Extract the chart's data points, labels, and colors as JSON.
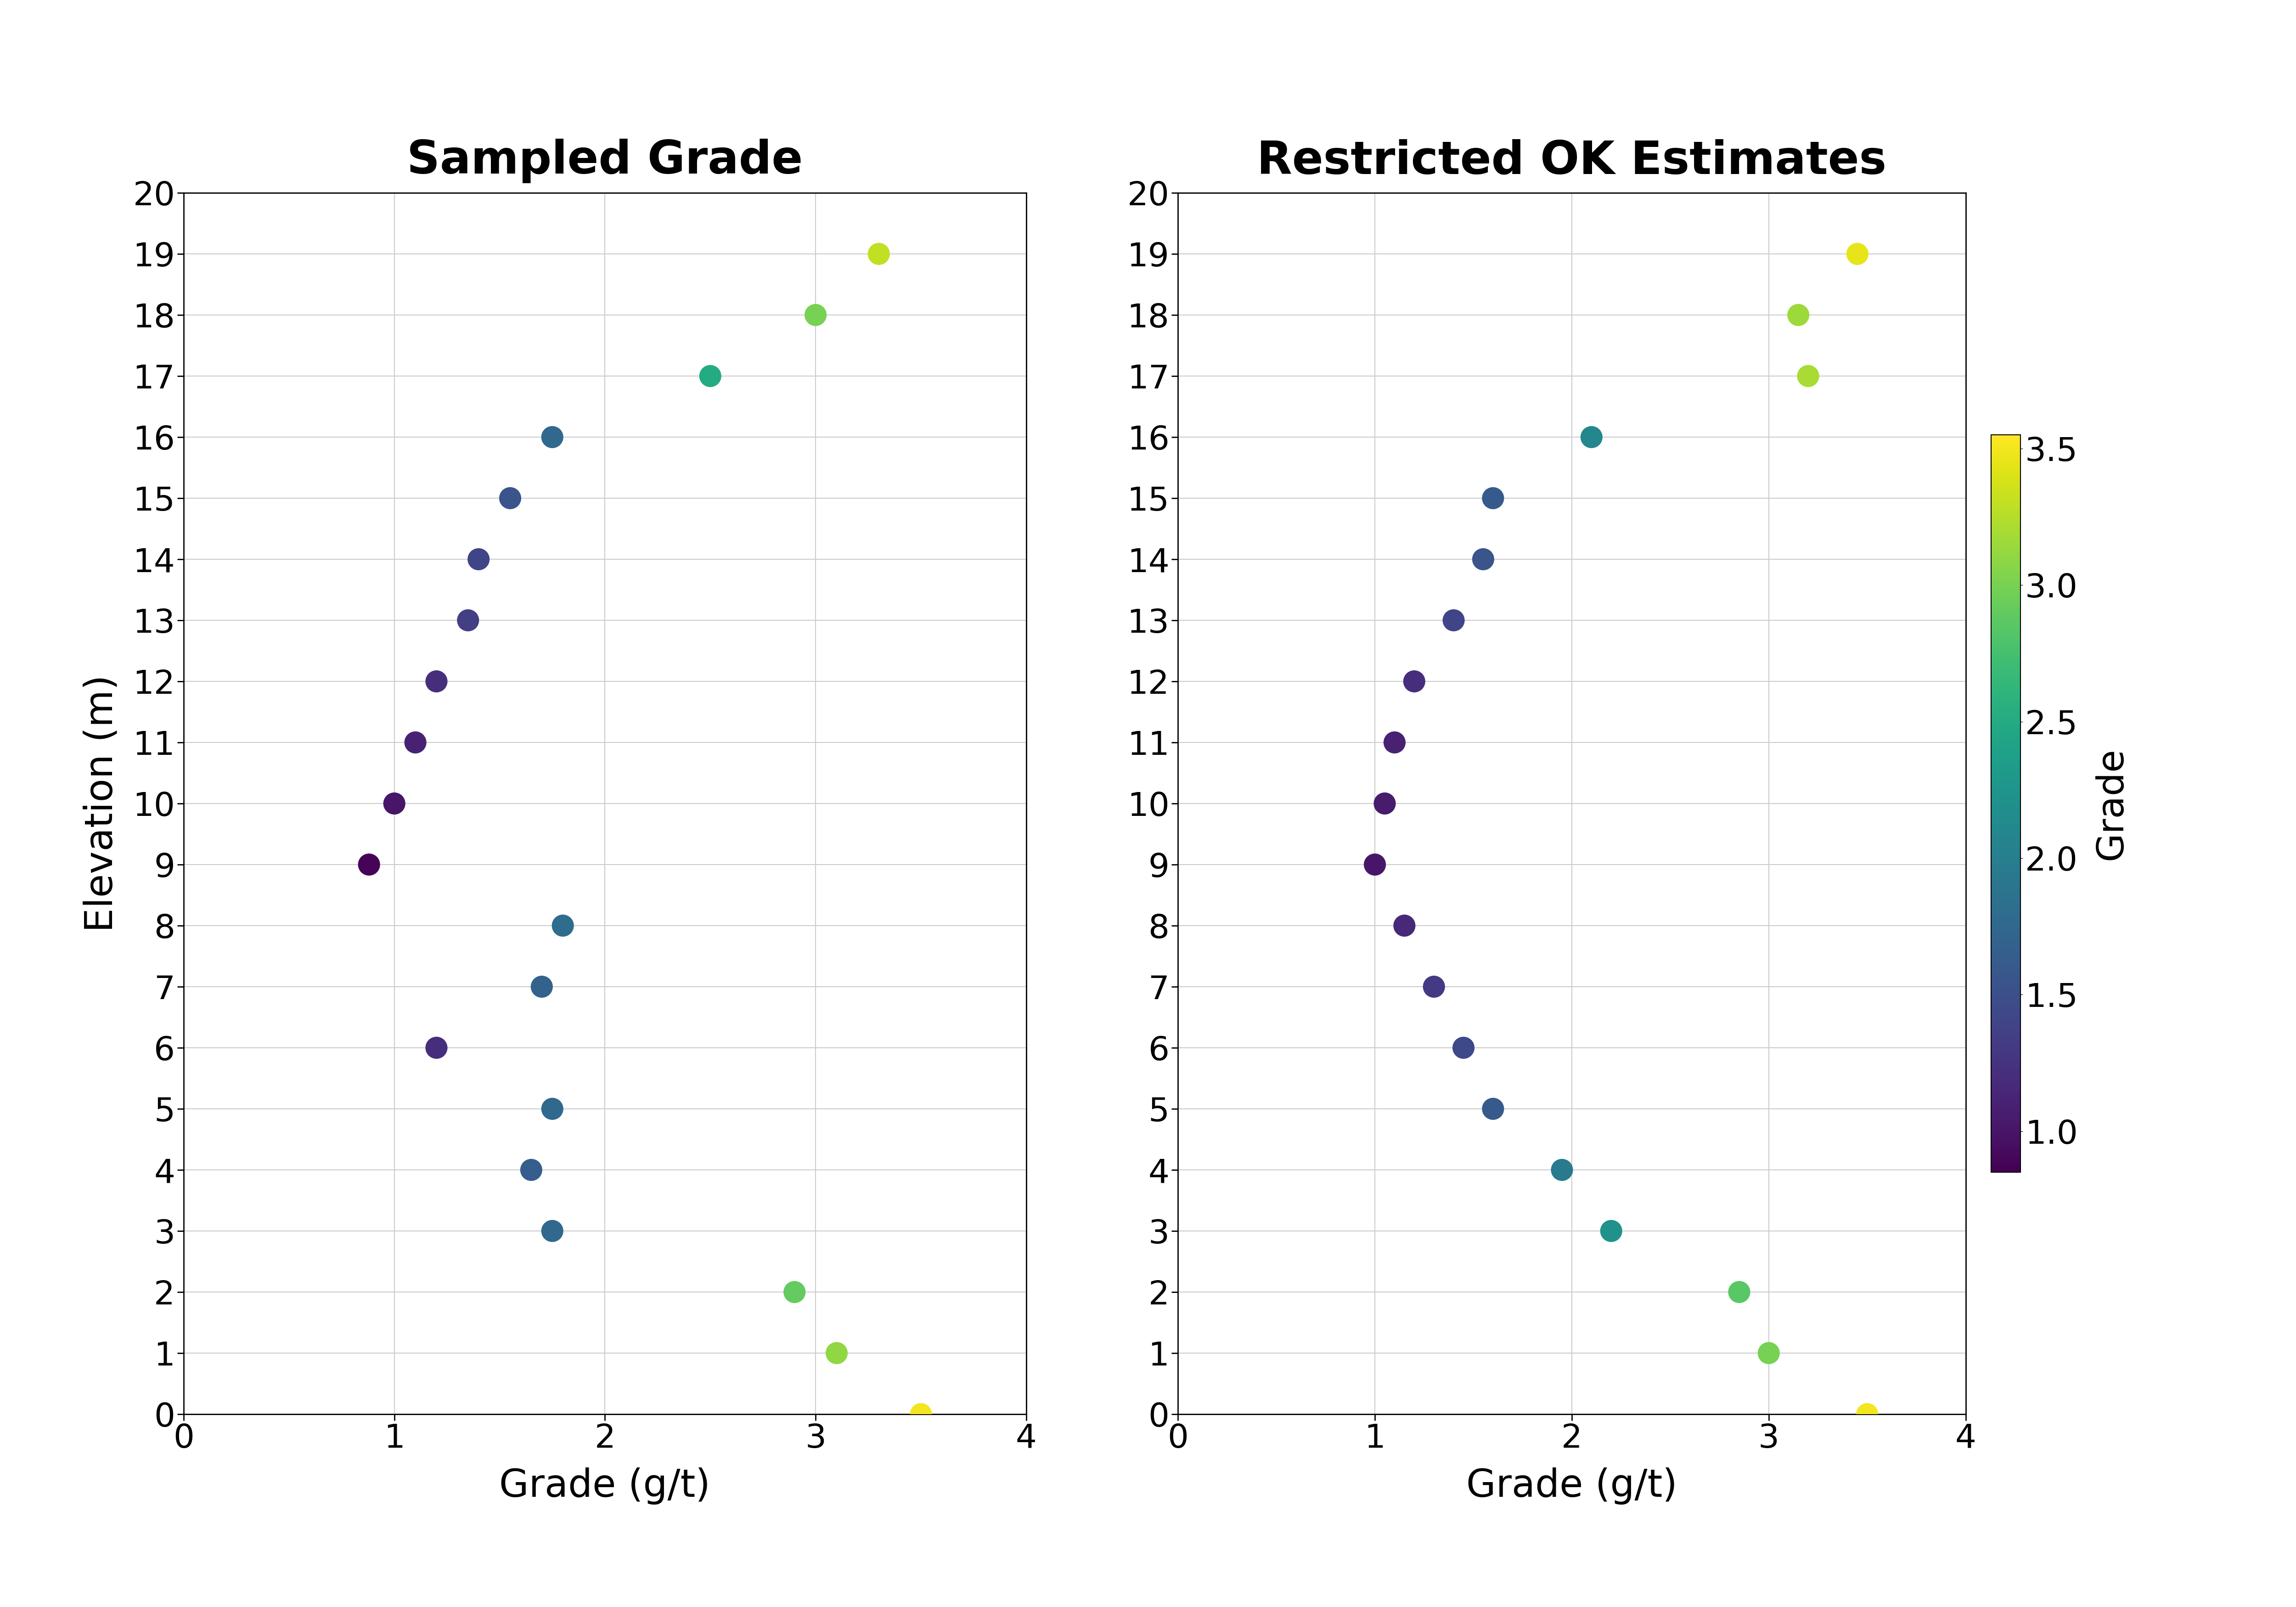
{
  "left_title": "Sampled Grade",
  "right_title": "Restricted OK Estimates",
  "xlabel": "Grade (g/t)",
  "ylabel": "Elevation (m)",
  "colorbar_label": "Grade",
  "xlim": [
    0,
    4
  ],
  "ylim": [
    0,
    20
  ],
  "yticks": [
    0,
    1,
    2,
    3,
    4,
    5,
    6,
    7,
    8,
    9,
    10,
    11,
    12,
    13,
    14,
    15,
    16,
    17,
    18,
    19,
    20
  ],
  "xticks": [
    0,
    1,
    2,
    3,
    4
  ],
  "cmap": "viridis",
  "vmin": 0.85,
  "vmax": 3.55,
  "colorbar_ticks": [
    1.0,
    1.5,
    2.0,
    2.5,
    3.0,
    3.5
  ],
  "left_elevation": [
    0,
    1,
    2,
    3,
    4,
    5,
    6,
    7,
    8,
    9,
    10,
    11,
    12,
    13,
    14,
    15,
    16,
    17,
    18,
    19
  ],
  "left_grade": [
    3.5,
    3.1,
    2.9,
    1.75,
    1.65,
    1.75,
    1.2,
    1.7,
    1.8,
    0.88,
    1.0,
    1.1,
    1.2,
    1.35,
    1.4,
    1.55,
    1.75,
    2.5,
    3.0,
    3.3
  ],
  "right_elevation": [
    0,
    1,
    2,
    3,
    4,
    5,
    6,
    7,
    8,
    9,
    10,
    11,
    12,
    13,
    14,
    15,
    16,
    17,
    18,
    19
  ],
  "right_grade": [
    3.5,
    3.0,
    2.85,
    2.2,
    1.95,
    1.6,
    1.45,
    1.3,
    1.15,
    1.0,
    1.05,
    1.1,
    1.2,
    1.4,
    1.55,
    1.6,
    2.1,
    3.2,
    3.15,
    3.45
  ],
  "marker_size": 1200,
  "title_fontsize": 72,
  "label_fontsize": 60,
  "tick_fontsize": 52,
  "colorbar_fontsize": 58,
  "colorbar_tick_fontsize": 52,
  "grid_color": "#cccccc",
  "grid_linewidth": 1.5,
  "spine_linewidth": 2.0
}
